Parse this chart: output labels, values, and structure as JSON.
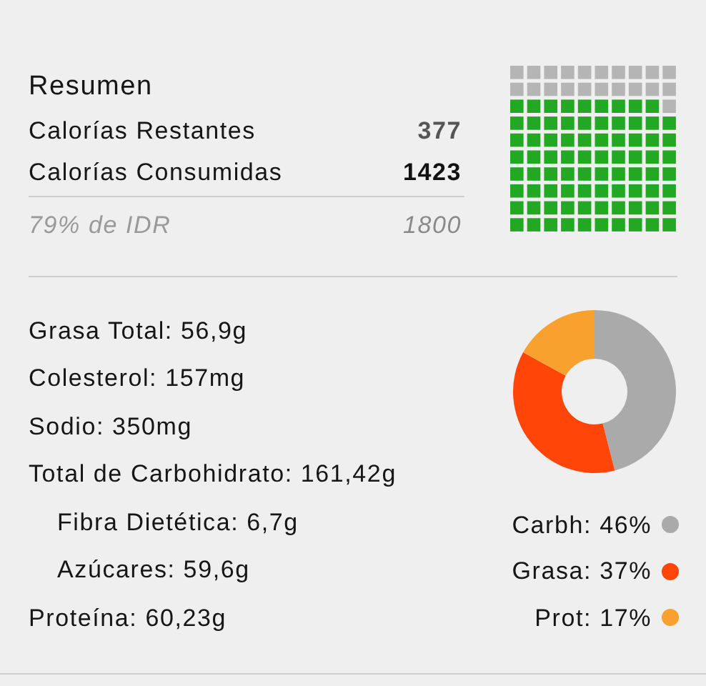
{
  "chart_data": [
    {
      "type": "other",
      "title": "Resumen",
      "categories": [
        "Calorías Restantes",
        "Calorías Consumidas"
      ],
      "values": [
        377,
        1423
      ],
      "colors": [
        "#b5b5b5",
        "#22a822"
      ],
      "data_labels": true,
      "annotations": [
        "79% de IDR",
        "1800"
      ]
    },
    {
      "type": "other",
      "annotations": [
        "Grasa Total: 56,9g",
        "Colesterol: 157mg",
        "Sodio: 350mg",
        "Total de Carbohidrato: 161,42g",
        "Fibra Dietética: 6,7g",
        "Azúcares: 59,6g",
        "Proteína: 60,23g"
      ]
    },
    {
      "type": "donut",
      "categories": [
        "Carbh",
        "Grasa",
        "Prot"
      ],
      "values": [
        46,
        37,
        17
      ],
      "colors": [
        "#aaaaaa",
        "#ff4508",
        "#f9a12e"
      ],
      "value_labels": [
        "46%",
        "37%",
        "17%"
      ],
      "legend": "bottom right"
    }
  ]
}
